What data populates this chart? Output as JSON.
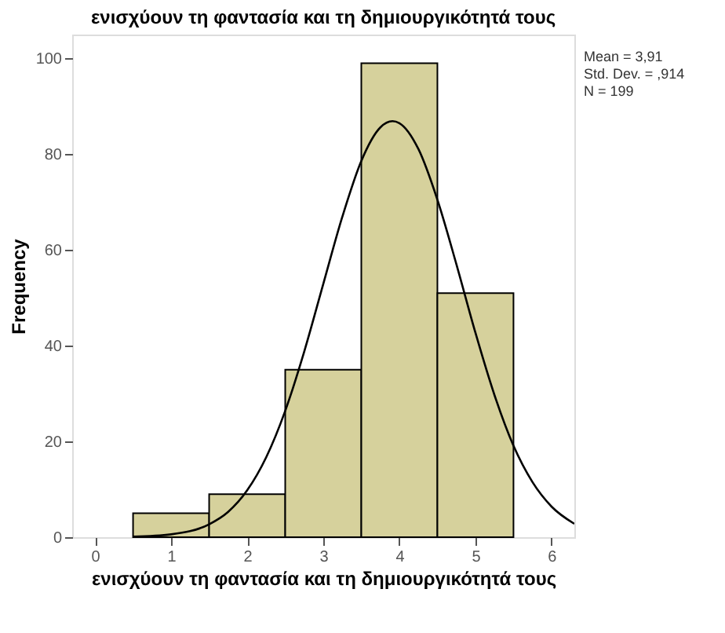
{
  "chart_data": {
    "type": "histogram",
    "title": "ενισχύουν τη φαντασία και τη δημιουργικότητά τους",
    "xlabel": "ενισχύουν τη φαντασία και τη δημιουργικότητά τους",
    "ylabel": "Frequency",
    "bins": [
      0.5,
      1.5,
      2.5,
      3.5,
      4.5,
      5.5
    ],
    "values": [
      5,
      9,
      35,
      99,
      51
    ],
    "color": "#d6d19c",
    "series": [
      {
        "type": "line",
        "color": "#000000",
        "x": [
          0.5,
          1.0,
          1.5,
          1.75,
          2.0,
          2.25,
          2.5,
          2.75,
          3.0,
          3.25,
          3.5,
          3.75,
          3.91,
          4.0,
          4.25,
          4.5,
          4.75,
          5.0,
          5.25,
          5.5,
          5.75,
          6.0,
          6.3
        ],
        "values": [
          0.1,
          0.6,
          2.7,
          5.3,
          9.8,
          16.7,
          26.4,
          38.8,
          52.9,
          66.9,
          78.6,
          85.6,
          86.9,
          86.5,
          81.1,
          70.5,
          57.0,
          42.7,
          29.7,
          19.1,
          11.5,
          6.4,
          2.8
        ]
      }
    ],
    "xlim": [
      -0.3,
      6.3
    ],
    "ylim": [
      0,
      105
    ],
    "xticks": [
      0,
      1,
      2,
      3,
      4,
      5,
      6
    ],
    "yticks": [
      0,
      20,
      40,
      60,
      80,
      100
    ],
    "grid": false,
    "annotations": [
      "Mean = 3,91",
      "Std. Dev. = ,914",
      "N = 199"
    ]
  }
}
